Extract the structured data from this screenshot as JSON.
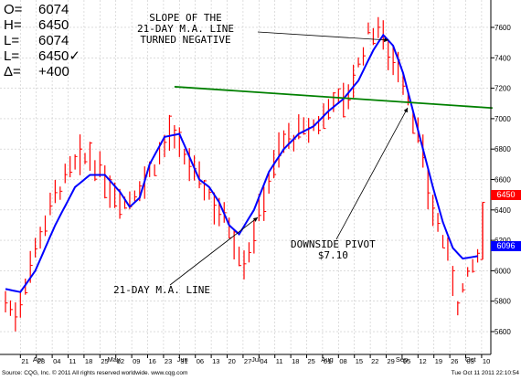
{
  "ohlc_box": {
    "rows": [
      {
        "label": "O=",
        "value": "6074"
      },
      {
        "label": "H=",
        "value": "6450"
      },
      {
        "label": "L=",
        "value": "6074"
      },
      {
        "label": "L=",
        "value": "6450✓"
      },
      {
        "label": "Δ=",
        "value": "+400"
      }
    ]
  },
  "annotations": {
    "slope": "SLOPE OF THE\n21-DAY M.A. LINE\nTURNED NEGATIVE",
    "pivot": "DOWNSIDE PIVOT\n$7.10",
    "ma_label": "21-DAY M.A. LINE"
  },
  "price_tags": {
    "last": "6450",
    "ma": "6096"
  },
  "footer": {
    "source": "Source: CQG, Inc. © 2011 All rights reserved worldwide. www.cqg.com",
    "stamp": "Tue Oct 11 2011 22:10:54"
  },
  "colors": {
    "bars": "#ff0000",
    "ma": "#0000ff",
    "trendline": "#008000",
    "last_tag": "#ff0000",
    "ma_tag": "#0000ff"
  },
  "chart_data": {
    "type": "bar",
    "y_ticks": [
      5600,
      5800,
      6000,
      6200,
      6400,
      6600,
      6800,
      7000,
      7200,
      7400,
      7600
    ],
    "ylim": [
      5450,
      7780
    ],
    "x_ticks": [
      "21",
      "28",
      "04",
      "11",
      "18",
      "25",
      "02",
      "09",
      "16",
      "23",
      "31",
      "06",
      "13",
      "20",
      "27",
      "04",
      "11",
      "18",
      "25",
      "01",
      "08",
      "15",
      "22",
      "29",
      "05",
      "12",
      "19",
      "26",
      "03",
      "10"
    ],
    "month_labels": [
      {
        "label": "Apr",
        "at": 4.5
      },
      {
        "label": "May",
        "at": 19.5
      },
      {
        "label": "Jun",
        "at": 33.5
      },
      {
        "label": "Jul",
        "at": 48.5
      },
      {
        "label": "Aug",
        "at": 62.5
      },
      {
        "label": "Sep",
        "at": 77.5
      },
      {
        "label": "Oct",
        "at": 91.5
      }
    ],
    "price_anchors": [
      [
        0,
        5800
      ],
      [
        2,
        5700
      ],
      [
        6,
        6150
      ],
      [
        10,
        6500
      ],
      [
        14,
        6700
      ],
      [
        17,
        6750
      ],
      [
        21,
        6550
      ],
      [
        24,
        6450
      ],
      [
        27,
        6550
      ],
      [
        30,
        6700
      ],
      [
        33,
        6900
      ],
      [
        36,
        6750
      ],
      [
        39,
        6600
      ],
      [
        42,
        6450
      ],
      [
        45,
        6300
      ],
      [
        48,
        6050
      ],
      [
        50,
        6250
      ],
      [
        53,
        6600
      ],
      [
        56,
        6850
      ],
      [
        59,
        6900
      ],
      [
        62,
        6950
      ],
      [
        64,
        7000
      ],
      [
        66,
        7150
      ],
      [
        68,
        7100
      ],
      [
        70,
        7250
      ],
      [
        73,
        7550
      ],
      [
        75,
        7600
      ],
      [
        77,
        7450
      ],
      [
        79,
        7350
      ],
      [
        81,
        7150
      ],
      [
        83,
        6900
      ],
      [
        85,
        6550
      ],
      [
        87,
        6300
      ],
      [
        89,
        6100
      ],
      [
        91,
        5800
      ],
      [
        93,
        5950
      ],
      [
        95,
        6100
      ],
      [
        96,
        6300
      ]
    ],
    "ma_anchors": [
      [
        0,
        5880
      ],
      [
        3,
        5860
      ],
      [
        6,
        6000
      ],
      [
        10,
        6300
      ],
      [
        14,
        6550
      ],
      [
        17,
        6630
      ],
      [
        20,
        6630
      ],
      [
        23,
        6520
      ],
      [
        25,
        6420
      ],
      [
        27,
        6480
      ],
      [
        29,
        6700
      ],
      [
        32,
        6880
      ],
      [
        35,
        6900
      ],
      [
        37,
        6750
      ],
      [
        39,
        6600
      ],
      [
        41,
        6550
      ],
      [
        43,
        6450
      ],
      [
        45,
        6300
      ],
      [
        47,
        6240
      ],
      [
        50,
        6400
      ],
      [
        53,
        6650
      ],
      [
        56,
        6800
      ],
      [
        59,
        6900
      ],
      [
        62,
        6950
      ],
      [
        65,
        7050
      ],
      [
        68,
        7130
      ],
      [
        71,
        7250
      ],
      [
        74,
        7450
      ],
      [
        76,
        7550
      ],
      [
        78,
        7480
      ],
      [
        80,
        7300
      ],
      [
        82,
        7050
      ],
      [
        84,
        6800
      ],
      [
        86,
        6550
      ],
      [
        88,
        6320
      ],
      [
        90,
        6150
      ],
      [
        92,
        6080
      ],
      [
        95,
        6096
      ]
    ],
    "last_bar": {
      "open": 6074,
      "high": 6450,
      "low": 6074,
      "close": 6450
    },
    "trendline": {
      "from": [
        34,
        7210
      ],
      "to": [
        98,
        7070
      ]
    }
  }
}
